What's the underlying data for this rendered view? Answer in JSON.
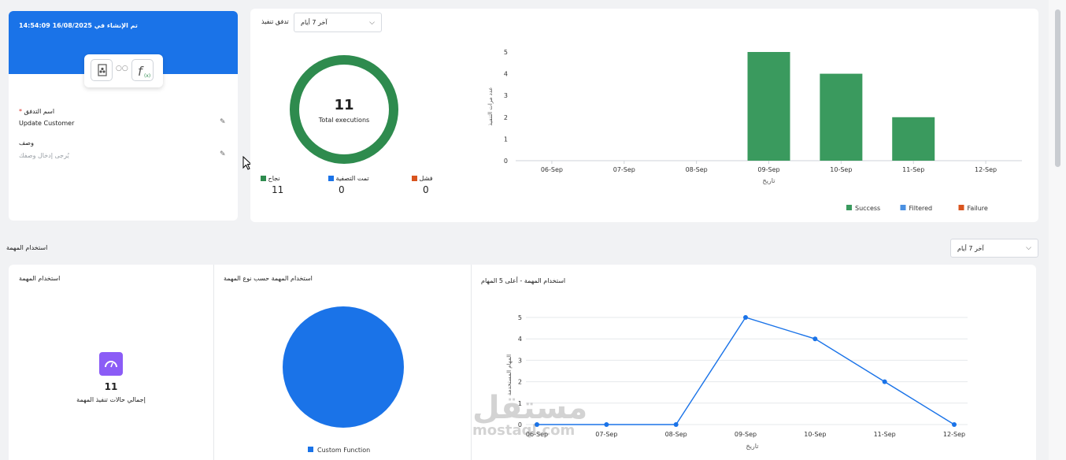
{
  "flow_card": {
    "created_label": "تم الإنشاء في 16/08/2025 14:54:09",
    "name_label": "اسم التدفق",
    "required_mark": "*",
    "name_value": "Update Customer",
    "desc_label": "وصف",
    "desc_placeholder": "يُرجى إدخال وصفك",
    "header_color": "#1a73e8"
  },
  "execution_card": {
    "title": "تدفق تنفيذ",
    "range_select": "آخر 7 أيام",
    "donut": {
      "value": "11",
      "label": "Total executions",
      "color": "#2e8b4e"
    },
    "stats": [
      {
        "label": "نجاح",
        "value": "11",
        "color": "#2e8b4e"
      },
      {
        "label": "تمت التصفية",
        "value": "0",
        "color": "#1a73e8"
      },
      {
        "label": "فشل",
        "value": "0",
        "color": "#d9541e"
      }
    ]
  },
  "task_section": {
    "title": "استخدام المهمة",
    "range_select": "آخر 7 أيام"
  },
  "task_usage_card": {
    "title": "استخدام المهمة",
    "value": "11",
    "label": "إجمالي حالات تنفيذ المهمة"
  },
  "task_type_card": {
    "title": "استخدام المهمة حسب نوع المهمة"
  },
  "top_tasks_card": {
    "title": "استخدام المهمة - أعلى 5 المهام"
  },
  "watermark": {
    "main": "مستقل",
    "sub": "mostaql.com"
  },
  "chart_data": [
    {
      "type": "bar",
      "categories": [
        "06-Sep",
        "07-Sep",
        "08-Sep",
        "09-Sep",
        "10-Sep",
        "11-Sep",
        "12-Sep"
      ],
      "series": [
        {
          "name": "Success",
          "values": [
            0,
            0,
            0,
            5,
            4,
            2,
            0
          ],
          "color": "#3a9a5e"
        },
        {
          "name": "Filtered",
          "values": [
            0,
            0,
            0,
            0,
            0,
            0,
            0
          ],
          "color": "#4a90e2"
        },
        {
          "name": "Failure",
          "values": [
            0,
            0,
            0,
            0,
            0,
            0,
            0
          ],
          "color": "#d9541e"
        }
      ],
      "xlabel": "تاريخ",
      "ylabel": "عدد مرات التنفيذ",
      "ylim": [
        0,
        5
      ],
      "yticks": [
        0,
        1,
        2,
        3,
        4,
        5
      ],
      "grid": false,
      "legend": "bottom-right"
    },
    {
      "type": "pie",
      "categories": [
        "Custom Function"
      ],
      "values": [
        11
      ],
      "colors": [
        "#1a73e8"
      ],
      "legend": "bottom"
    },
    {
      "type": "line",
      "categories": [
        "06-Sep",
        "07-Sep",
        "08-Sep",
        "09-Sep",
        "10-Sep",
        "11-Sep",
        "12-Sep"
      ],
      "values": [
        0,
        0,
        0,
        5,
        4,
        2,
        0
      ],
      "color": "#1a73e8",
      "xlabel": "تاريخ",
      "ylabel": "المهام المستخدمة",
      "ylim": [
        0,
        5
      ],
      "yticks": [
        0,
        1,
        2,
        3,
        4,
        5
      ],
      "grid": true
    }
  ]
}
